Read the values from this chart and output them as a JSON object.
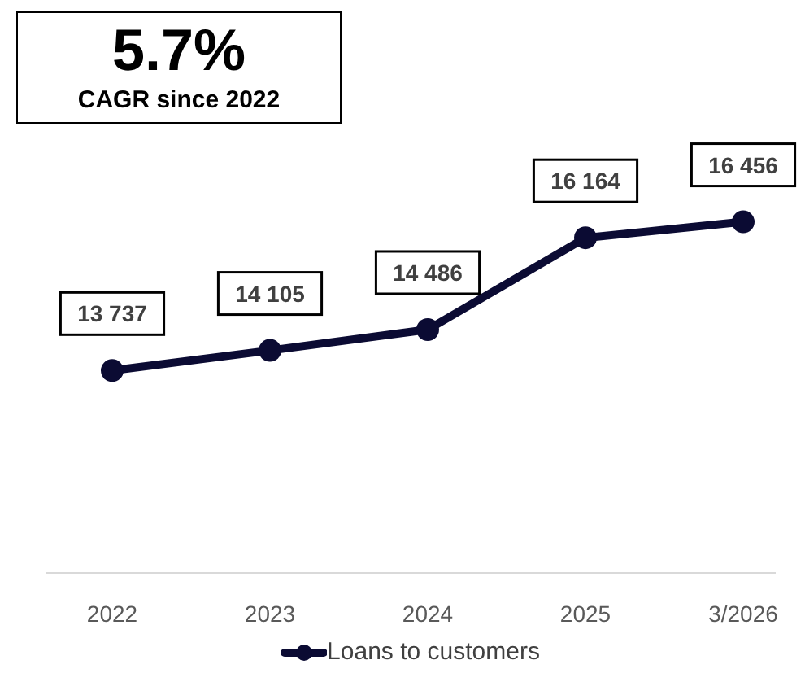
{
  "chart_data": {
    "type": "line",
    "annotations": [
      "5.7%",
      "CAGR since 2022"
    ],
    "categories": [
      "2022",
      "2023",
      "2024",
      "2025",
      "3/2026"
    ],
    "series": [
      {
        "name": "Loans to customers",
        "color": "#0b0b33",
        "values": [
          13737,
          14105,
          14486,
          16164,
          16456
        ],
        "value_labels": [
          "13 737",
          "14 105",
          "14 486",
          "16 164",
          "16 456"
        ]
      }
    ],
    "tick_labels": "x",
    "marker": "circle",
    "line_style": "solid",
    "grid": false,
    "legend": "bottom"
  }
}
